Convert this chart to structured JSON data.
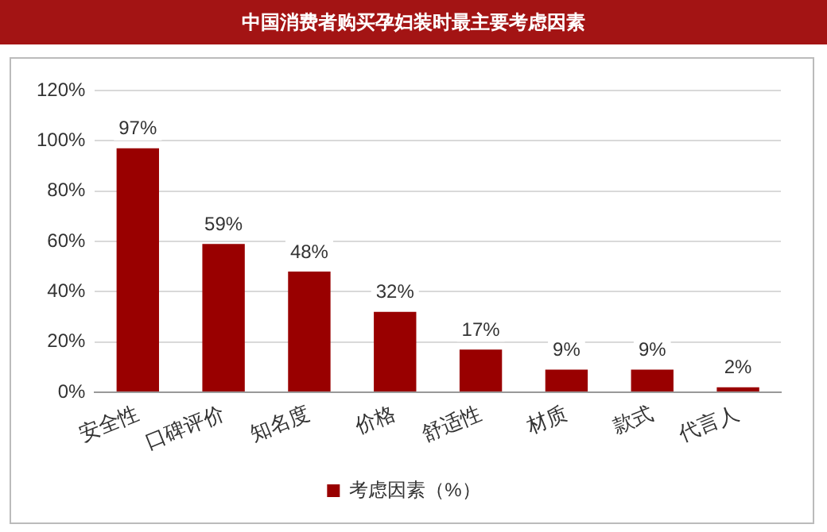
{
  "chart_data": {
    "type": "bar",
    "title": "中国消费者购买孕妇装时最主要考虑因素",
    "categories": [
      "安全性",
      "口碑评价",
      "知名度",
      "价格",
      "舒适性",
      "材质",
      "款式",
      "代言人"
    ],
    "series": [
      {
        "name": "考虑因素（%）",
        "color": "#990000",
        "values": [
          97,
          59,
          48,
          32,
          17,
          9,
          9,
          2
        ]
      }
    ],
    "value_labels": [
      "97%",
      "59%",
      "48%",
      "32%",
      "17%",
      "9%",
      "9%",
      "2%"
    ],
    "ylim": [
      0,
      120
    ],
    "yticks": [
      {
        "value": 0,
        "label": "0%"
      },
      {
        "value": 20,
        "label": "20%"
      },
      {
        "value": 40,
        "label": "40%"
      },
      {
        "value": 60,
        "label": "60%"
      },
      {
        "value": 80,
        "label": "80%"
      },
      {
        "value": 100,
        "label": "100%"
      },
      {
        "value": 120,
        "label": "120%"
      }
    ],
    "grid": "y",
    "legend": "bottom"
  }
}
